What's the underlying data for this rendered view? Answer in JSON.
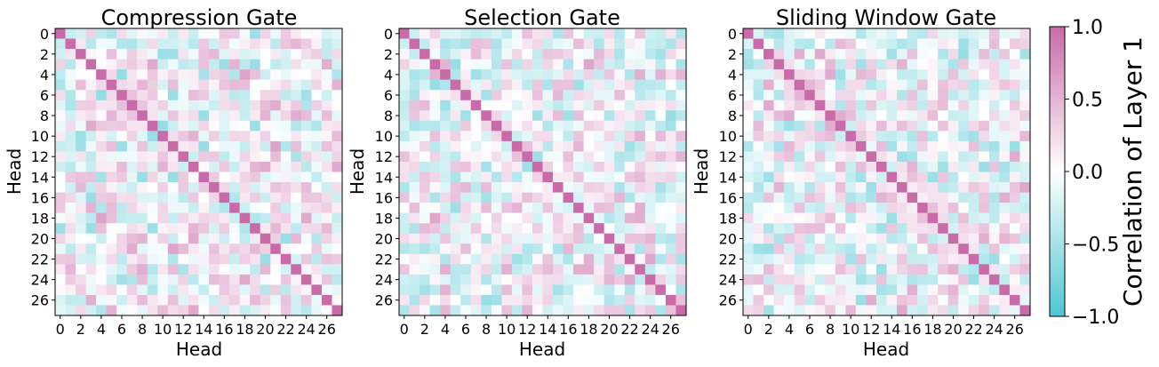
{
  "chart_data": {
    "type": "heatmap",
    "panels": [
      {
        "title": "Compression Gate",
        "xlabel": "Head",
        "ylabel": "Head",
        "n": 28,
        "seed": 11,
        "diag": 1.0
      },
      {
        "title": "Selection Gate",
        "xlabel": "Head",
        "ylabel": "Head",
        "n": 28,
        "seed": 23,
        "diag": 1.0
      },
      {
        "title": "Sliding Window Gate",
        "xlabel": "Head",
        "ylabel": "Head",
        "n": 28,
        "seed": 37,
        "diag": 1.0
      }
    ],
    "tick_labels": [
      "0",
      "2",
      "4",
      "6",
      "8",
      "10",
      "12",
      "14",
      "16",
      "18",
      "20",
      "22",
      "24",
      "26"
    ],
    "value_range": [
      -1.0,
      1.0
    ],
    "colorbar": {
      "label": "Correlation of Layer 1",
      "ticks": [
        "1.0",
        "0.5",
        "0.0",
        "−0.5",
        "−1.0"
      ],
      "tick_values": [
        1.0,
        0.5,
        0.0,
        -0.5,
        -1.0
      ]
    },
    "colors": {
      "low": "#4ec6d2",
      "mid": "#ffffff",
      "high": "#c96aa9"
    }
  }
}
